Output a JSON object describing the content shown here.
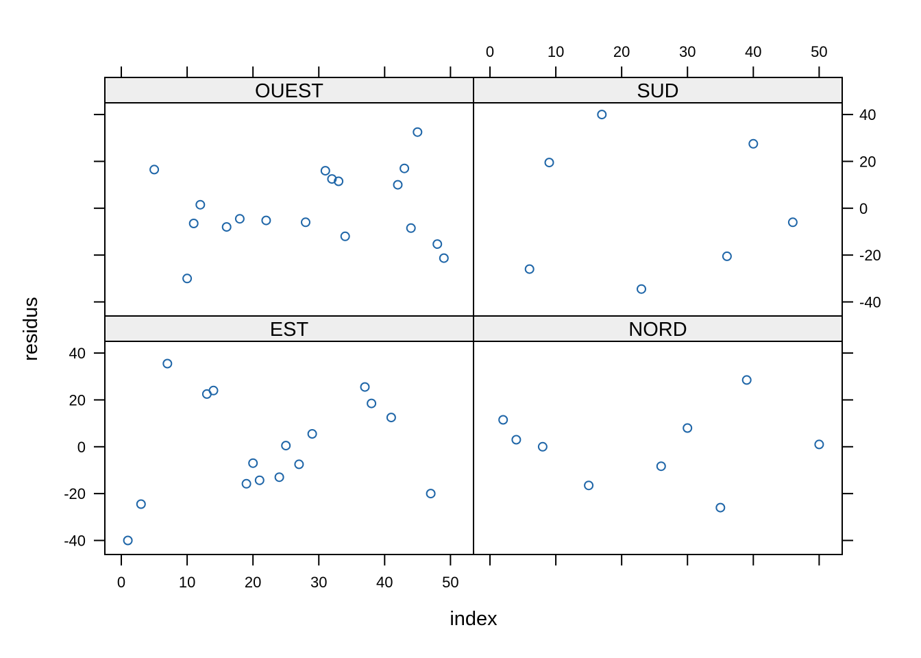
{
  "chart_data": {
    "type": "scatter",
    "layout": "lattice 2x2",
    "xlabel": "index",
    "ylabel": "residus",
    "xlim": [
      -2.5,
      53.5
    ],
    "ylim": [
      -46,
      45
    ],
    "x_ticks": [
      0,
      10,
      20,
      30,
      40,
      50
    ],
    "y_ticks": [
      -40,
      -20,
      0,
      20,
      40
    ],
    "point_color": "#1f66a8",
    "strip_color": "#eeeeee",
    "panels": [
      {
        "name": "OUEST",
        "points": [
          [
            5,
            16.5
          ],
          [
            10,
            -30
          ],
          [
            11,
            -6.5
          ],
          [
            12,
            1.5
          ],
          [
            16,
            -8
          ],
          [
            18,
            -4.5
          ],
          [
            22,
            -5.2
          ],
          [
            28,
            -6
          ],
          [
            31,
            16
          ],
          [
            32,
            12.5
          ],
          [
            33,
            11.5
          ],
          [
            34,
            -12
          ],
          [
            42,
            10
          ],
          [
            43,
            17
          ],
          [
            44,
            -8.5
          ],
          [
            45,
            32.5
          ],
          [
            48,
            -15.3
          ],
          [
            49,
            -21.3
          ]
        ]
      },
      {
        "name": "SUD",
        "points": [
          [
            6,
            -26
          ],
          [
            9,
            19.5
          ],
          [
            17,
            40
          ],
          [
            23,
            -34.5
          ],
          [
            36,
            -20.5
          ],
          [
            40,
            27.5
          ],
          [
            46,
            -6
          ]
        ]
      },
      {
        "name": "EST",
        "points": [
          [
            1,
            -40
          ],
          [
            3,
            -24.5
          ],
          [
            7,
            35.5
          ],
          [
            13,
            22.5
          ],
          [
            14,
            24
          ],
          [
            19,
            -15.8
          ],
          [
            20,
            -7
          ],
          [
            21,
            -14.3
          ],
          [
            24,
            -13
          ],
          [
            25,
            0.5
          ],
          [
            27,
            -7.5
          ],
          [
            29,
            5.5
          ],
          [
            37,
            25.5
          ],
          [
            38,
            18.5
          ],
          [
            41,
            12.5
          ],
          [
            47,
            -20
          ]
        ]
      },
      {
        "name": "NORD",
        "points": [
          [
            2,
            11.5
          ],
          [
            4,
            3
          ],
          [
            8,
            0
          ],
          [
            15,
            -16.5
          ],
          [
            26,
            -8.3
          ],
          [
            30,
            8
          ],
          [
            35,
            -26
          ],
          [
            39,
            28.5
          ],
          [
            50,
            1
          ]
        ]
      }
    ]
  }
}
